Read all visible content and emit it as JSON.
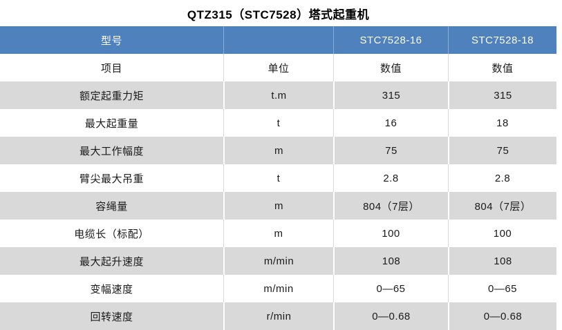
{
  "title": "QTZ315（STC7528）塔式起重机",
  "colors": {
    "header_bg": "#4F81BD",
    "header_text": "#FFFFFF",
    "alt_row_bg": "#D9D9D9",
    "body_text": "#1A1A1A"
  },
  "table": {
    "model_header": {
      "label": "型号",
      "model_1": "STC7528-16",
      "model_2": "STC7528-18"
    },
    "column_header": {
      "item": "项目",
      "unit": "单位",
      "value_1": "数值",
      "value_2": "数值"
    },
    "rows": [
      {
        "item": "额定起重力矩",
        "unit": "t.m",
        "v1": "315",
        "v2": "315"
      },
      {
        "item": "最大起重量",
        "unit": "t",
        "v1": "16",
        "v2": "18"
      },
      {
        "item": "最大工作幅度",
        "unit": "m",
        "v1": "75",
        "v2": "75"
      },
      {
        "item": "臂尖最大吊重",
        "unit": "t",
        "v1": "2.8",
        "v2": "2.8"
      },
      {
        "item": "容绳量",
        "unit": "m",
        "v1": "804（7层）",
        "v2": "804（7层）"
      },
      {
        "item": "电缆长（标配）",
        "unit": "m",
        "v1": "100",
        "v2": "100"
      },
      {
        "item": "最大起升速度",
        "unit": "m/min",
        "v1": "108",
        "v2": "108"
      },
      {
        "item": "变幅速度",
        "unit": "m/min",
        "v1": "0—65",
        "v2": "0—65"
      },
      {
        "item": "回转速度",
        "unit": "r/min",
        "v1": "0—0.68",
        "v2": "0—0.68"
      }
    ]
  }
}
